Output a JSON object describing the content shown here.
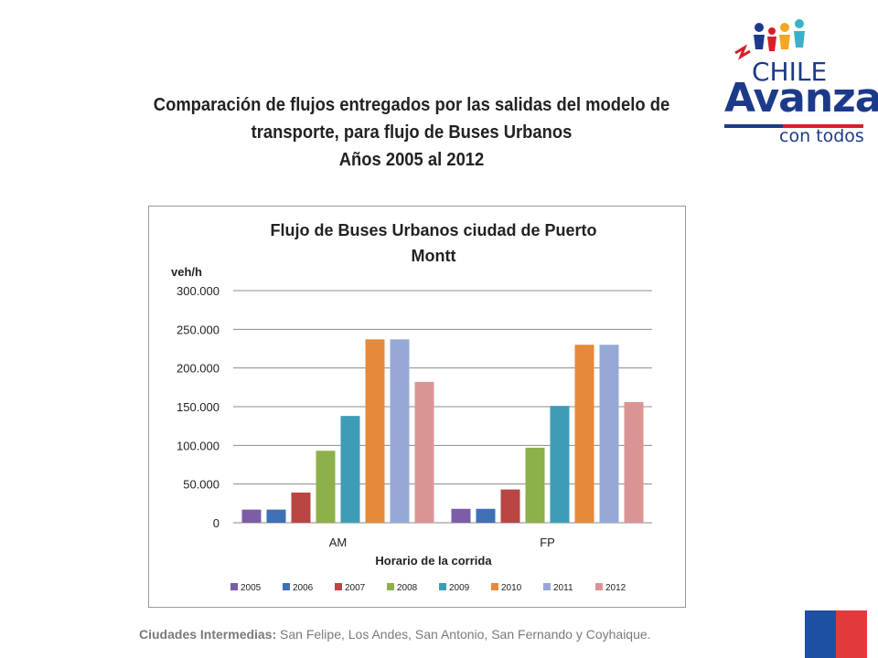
{
  "slide": {
    "title_lines": [
      "Comparación de flujos entregados por las salidas del modelo de",
      "transporte, para flujo de Buses Urbanos",
      "Años 2005 al 2012"
    ],
    "footer_label": "Ciudades Intermedias:",
    "footer_text": "San Felipe, Los Andes, San Antonio, San Fernando y Coyhaique."
  },
  "logo": {
    "line1": "CHILE",
    "line2": "Avanza",
    "line3": "con todos",
    "colors": {
      "blue": "#1d3a8a",
      "red": "#d81e2a",
      "orange": "#f5a623",
      "teal": "#3bb0c9"
    }
  },
  "chart_data": {
    "type": "bar",
    "title": "Flujo de Buses Urbanos ciudad de Puerto Montt",
    "title_lines": [
      "Flujo de Buses Urbanos ciudad de Puerto",
      "Montt"
    ],
    "ylabel": "veh/h",
    "xlabel": "Horario de la corrida",
    "categories": [
      "AM",
      "FP"
    ],
    "ylim": [
      0,
      300000
    ],
    "yticks": [
      0,
      50000,
      100000,
      150000,
      200000,
      250000,
      300000
    ],
    "ytick_labels": [
      "0",
      "50.000",
      "100.000",
      "150.000",
      "200.000",
      "250.000",
      "300.000"
    ],
    "grid": true,
    "legend_position": "bottom",
    "series": [
      {
        "name": "2005",
        "color": "#7b5ea7",
        "values": [
          17000,
          18000
        ]
      },
      {
        "name": "2006",
        "color": "#3f6fb5",
        "values": [
          17000,
          18000
        ]
      },
      {
        "name": "2007",
        "color": "#b94643",
        "values": [
          39000,
          43000
        ]
      },
      {
        "name": "2008",
        "color": "#8db04a",
        "values": [
          93000,
          97000
        ]
      },
      {
        "name": "2009",
        "color": "#3d9db6",
        "values": [
          138000,
          151000
        ]
      },
      {
        "name": "2010",
        "color": "#e5893a",
        "values": [
          237000,
          230000
        ]
      },
      {
        "name": "2011",
        "color": "#96a9d6",
        "values": [
          237000,
          230000
        ]
      },
      {
        "name": "2012",
        "color": "#d99594",
        "values": [
          182000,
          156000
        ]
      }
    ]
  }
}
